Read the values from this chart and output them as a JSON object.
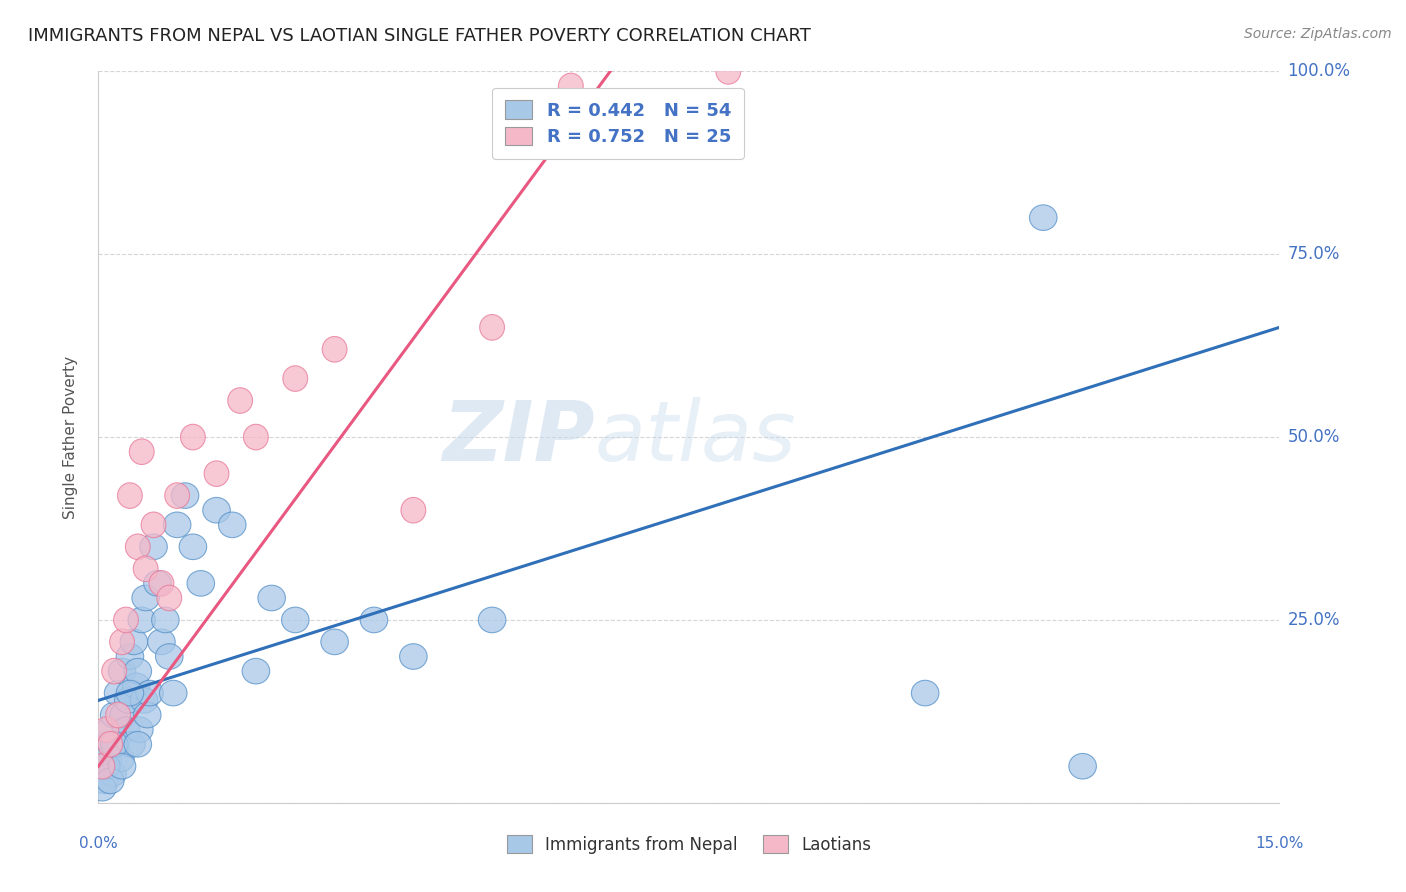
{
  "title": "IMMIGRANTS FROM NEPAL VS LAOTIAN SINGLE FATHER POVERTY CORRELATION CHART",
  "source": "Source: ZipAtlas.com",
  "ylabel": "Single Father Poverty",
  "watermark_zip": "ZIP",
  "watermark_atlas": "atlas",
  "legend_label1": "Immigrants from Nepal",
  "legend_label2": "Laotians",
  "r1": 0.442,
  "n1": 54,
  "r2": 0.752,
  "n2": 25,
  "color1": "#a8c8e8",
  "color2": "#f5b8c8",
  "color1_edge": "#5590c8",
  "color2_edge": "#e87898",
  "color1_line": "#3070b8",
  "color2_line": "#e85880",
  "x_min": 0.0,
  "x_max": 15.0,
  "y_min": 0.0,
  "y_max": 100.0,
  "nepal_x": [
    0.05,
    0.08,
    0.1,
    0.12,
    0.15,
    0.18,
    0.2,
    0.22,
    0.25,
    0.28,
    0.3,
    0.32,
    0.35,
    0.38,
    0.4,
    0.42,
    0.45,
    0.48,
    0.5,
    0.52,
    0.55,
    0.58,
    0.6,
    0.62,
    0.65,
    0.7,
    0.75,
    0.8,
    0.85,
    0.9,
    0.95,
    1.0,
    1.1,
    1.2,
    1.3,
    1.5,
    1.7,
    2.0,
    2.2,
    2.5,
    3.0,
    3.5,
    4.0,
    5.0,
    0.05,
    0.1,
    0.15,
    0.2,
    0.3,
    0.4,
    0.5,
    10.5,
    12.0,
    12.5
  ],
  "nepal_y": [
    5,
    3,
    8,
    6,
    10,
    4,
    12,
    8,
    15,
    6,
    18,
    12,
    10,
    14,
    20,
    8,
    22,
    16,
    18,
    10,
    25,
    14,
    28,
    12,
    15,
    35,
    30,
    22,
    25,
    20,
    15,
    38,
    42,
    35,
    30,
    40,
    38,
    18,
    28,
    25,
    22,
    25,
    20,
    25,
    2,
    5,
    3,
    8,
    5,
    15,
    8,
    15,
    80,
    5
  ],
  "laotian_x": [
    0.05,
    0.1,
    0.15,
    0.2,
    0.3,
    0.4,
    0.5,
    0.6,
    0.7,
    0.8,
    0.9,
    1.0,
    1.2,
    1.5,
    1.8,
    2.0,
    2.5,
    3.0,
    4.0,
    5.0,
    6.0,
    0.25,
    0.55,
    0.35,
    8.0
  ],
  "laotian_y": [
    5,
    10,
    8,
    18,
    22,
    42,
    35,
    32,
    38,
    30,
    28,
    42,
    50,
    45,
    55,
    50,
    58,
    62,
    40,
    65,
    98,
    12,
    48,
    25,
    100
  ],
  "line1_x0": 0.0,
  "line1_y0": 14.0,
  "line1_x1": 15.0,
  "line1_y1": 65.0,
  "line2_x0": 0.0,
  "line2_y0": 5.0,
  "line2_x1": 6.5,
  "line2_y1": 100.0
}
